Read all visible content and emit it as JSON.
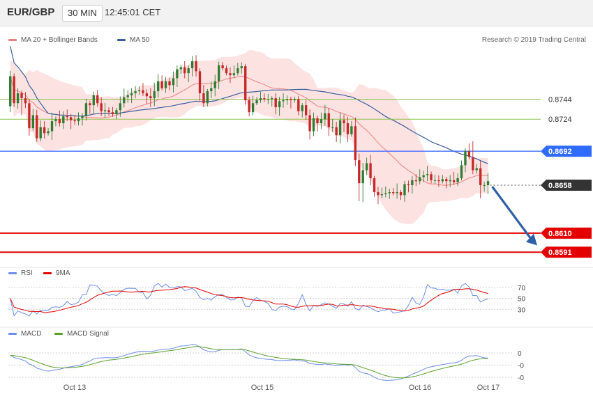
{
  "header": {
    "symbol": "EUR/GBP",
    "timeframe": "30 MIN",
    "time": "12:45:01 CET"
  },
  "legend_price": {
    "bb": "MA 20 + Bollinger Bands",
    "ma50": "MA 50"
  },
  "legend_rsi": {
    "rsi": "RSI",
    "ma9": "9MA"
  },
  "legend_macd": {
    "macd": "MACD",
    "signal": "MACD Signal"
  },
  "copyright": "Research © 2019 Trading Central",
  "colors": {
    "resistance": "#8bc34a",
    "current_line": "#3f6bff",
    "support": "#e50000",
    "bull": "#2e7d32",
    "bear": "#c62828",
    "ma50": "#3a5f9e",
    "bb_fill": "#fde2e2",
    "bb_line": "#f08080",
    "rsi": "#6b8ee8",
    "ma9": "#e00000",
    "macd": "#6b8ee8",
    "signal": "#5aa02c",
    "arrow": "#2f5fa6"
  },
  "chart_data": [
    {
      "type": "candlestick",
      "pane": "price",
      "x_labels": [
        "Oct 13",
        "Oct 15",
        "Oct 16",
        "Oct 17"
      ],
      "ylim": [
        0.858,
        0.8798
      ],
      "levels": [
        {
          "value": 0.8744,
          "label": "0.8744",
          "kind": "resistance"
        },
        {
          "value": 0.8724,
          "label": "0.8724",
          "kind": "resistance"
        },
        {
          "value": 0.8692,
          "label": "0.8692",
          "kind": "current"
        },
        {
          "value": 0.8658,
          "label": "0.8658",
          "kind": "last"
        },
        {
          "value": 0.861,
          "label": "0.8610",
          "kind": "support"
        },
        {
          "value": 0.8591,
          "label": "0.8591",
          "kind": "support"
        }
      ],
      "forecast_arrow": {
        "from": 0.8658,
        "to": 0.8604
      },
      "series": [
        {
          "name": "EUR/GBP",
          "closes": [
            0.8767,
            0.874,
            0.875,
            0.8745,
            0.874,
            0.8715,
            0.8728,
            0.8705,
            0.8716,
            0.871,
            0.8712,
            0.8722,
            0.8724,
            0.872,
            0.8727,
            0.8726,
            0.8723,
            0.8722,
            0.8725,
            0.8727,
            0.874,
            0.8738,
            0.8748,
            0.874,
            0.8732,
            0.8733,
            0.8731,
            0.8729,
            0.8733,
            0.874,
            0.8746,
            0.8748,
            0.875,
            0.8752,
            0.8753,
            0.875,
            0.8747,
            0.8745,
            0.8752,
            0.8762,
            0.8755,
            0.8762,
            0.8758,
            0.8765,
            0.8774,
            0.8776,
            0.877,
            0.8775,
            0.8782,
            0.8772,
            0.875,
            0.874,
            0.8752,
            0.8755,
            0.8762,
            0.8778,
            0.8775,
            0.877,
            0.8768,
            0.877,
            0.8775,
            0.8777,
            0.8743,
            0.8731,
            0.874,
            0.8743,
            0.8745,
            0.8744,
            0.8744,
            0.8745,
            0.8736,
            0.8742,
            0.8743,
            0.8744,
            0.8743,
            0.8744,
            0.8732,
            0.8738,
            0.8728,
            0.8712,
            0.8725,
            0.872,
            0.8724,
            0.873,
            0.8716,
            0.8716,
            0.8708,
            0.8723,
            0.872,
            0.8709,
            0.8717,
            0.8683,
            0.866,
            0.8673,
            0.868,
            0.8665,
            0.8651,
            0.8648,
            0.8649,
            0.865,
            0.8651,
            0.865,
            0.8651,
            0.8648,
            0.8659,
            0.8658,
            0.8663,
            0.8662,
            0.8666,
            0.8668,
            0.8669,
            0.8663,
            0.8663,
            0.8662,
            0.8664,
            0.8662,
            0.8663,
            0.8661,
            0.8665,
            0.8678,
            0.8692,
            0.8686,
            0.8673,
            0.8675,
            0.8658,
            0.8658,
            0.8662
          ]
        },
        {
          "name": "MA 50"
        },
        {
          "name": "MA 20 + Bollinger Bands"
        }
      ]
    },
    {
      "type": "line",
      "pane": "rsi",
      "yticks": [
        70,
        50,
        30
      ],
      "ylim": [
        10,
        80
      ],
      "series": [
        {
          "name": "RSI"
        },
        {
          "name": "9MA"
        }
      ]
    },
    {
      "type": "line",
      "pane": "macd",
      "ytick_labels": [
        "0",
        "-0",
        "-0"
      ],
      "ylim": [
        -0.0022,
        0.0014
      ],
      "series": [
        {
          "name": "MACD"
        },
        {
          "name": "MACD Signal"
        }
      ]
    }
  ]
}
